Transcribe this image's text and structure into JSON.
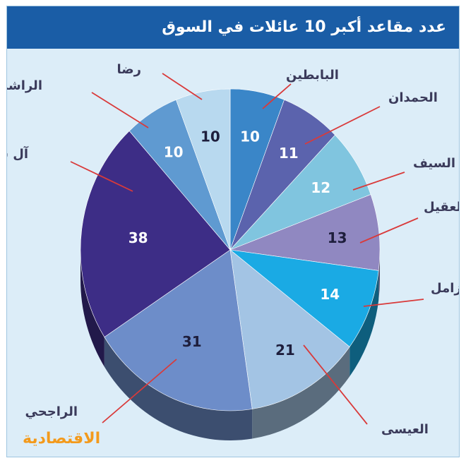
{
  "header": {
    "title": "عدد مقاعد أكبر 10 عائلات في السوق"
  },
  "brand": {
    "logo_text": "الاقتصادية"
  },
  "chart_data": {
    "type": "pie",
    "title": "عدد مقاعد أكبر 10 عائلات في السوق",
    "slices": [
      {
        "label": "البابطين",
        "value": 10,
        "color": "#3a86c8"
      },
      {
        "label": "الحمدان",
        "value": 11,
        "color": "#5b63ad"
      },
      {
        "label": "السيف",
        "value": 12,
        "color": "#80c5df"
      },
      {
        "label": "العقيل",
        "value": 13,
        "color": "#9088c1"
      },
      {
        "label": "الزامل",
        "value": 14,
        "color": "#1aaae4"
      },
      {
        "label": "العيسى",
        "value": 21,
        "color": "#a3c4e4"
      },
      {
        "label": "الراجحي",
        "value": 31,
        "color": "#6d8dc9"
      },
      {
        "label": "آل سعود",
        "value": 38,
        "color": "#3d2d86"
      },
      {
        "label": "الراشد",
        "value": 10,
        "color": "#5f9ad1"
      },
      {
        "label": "رضا",
        "value": 10,
        "color": "#b8d9ef"
      }
    ],
    "leader_color": "#d93a3a"
  }
}
